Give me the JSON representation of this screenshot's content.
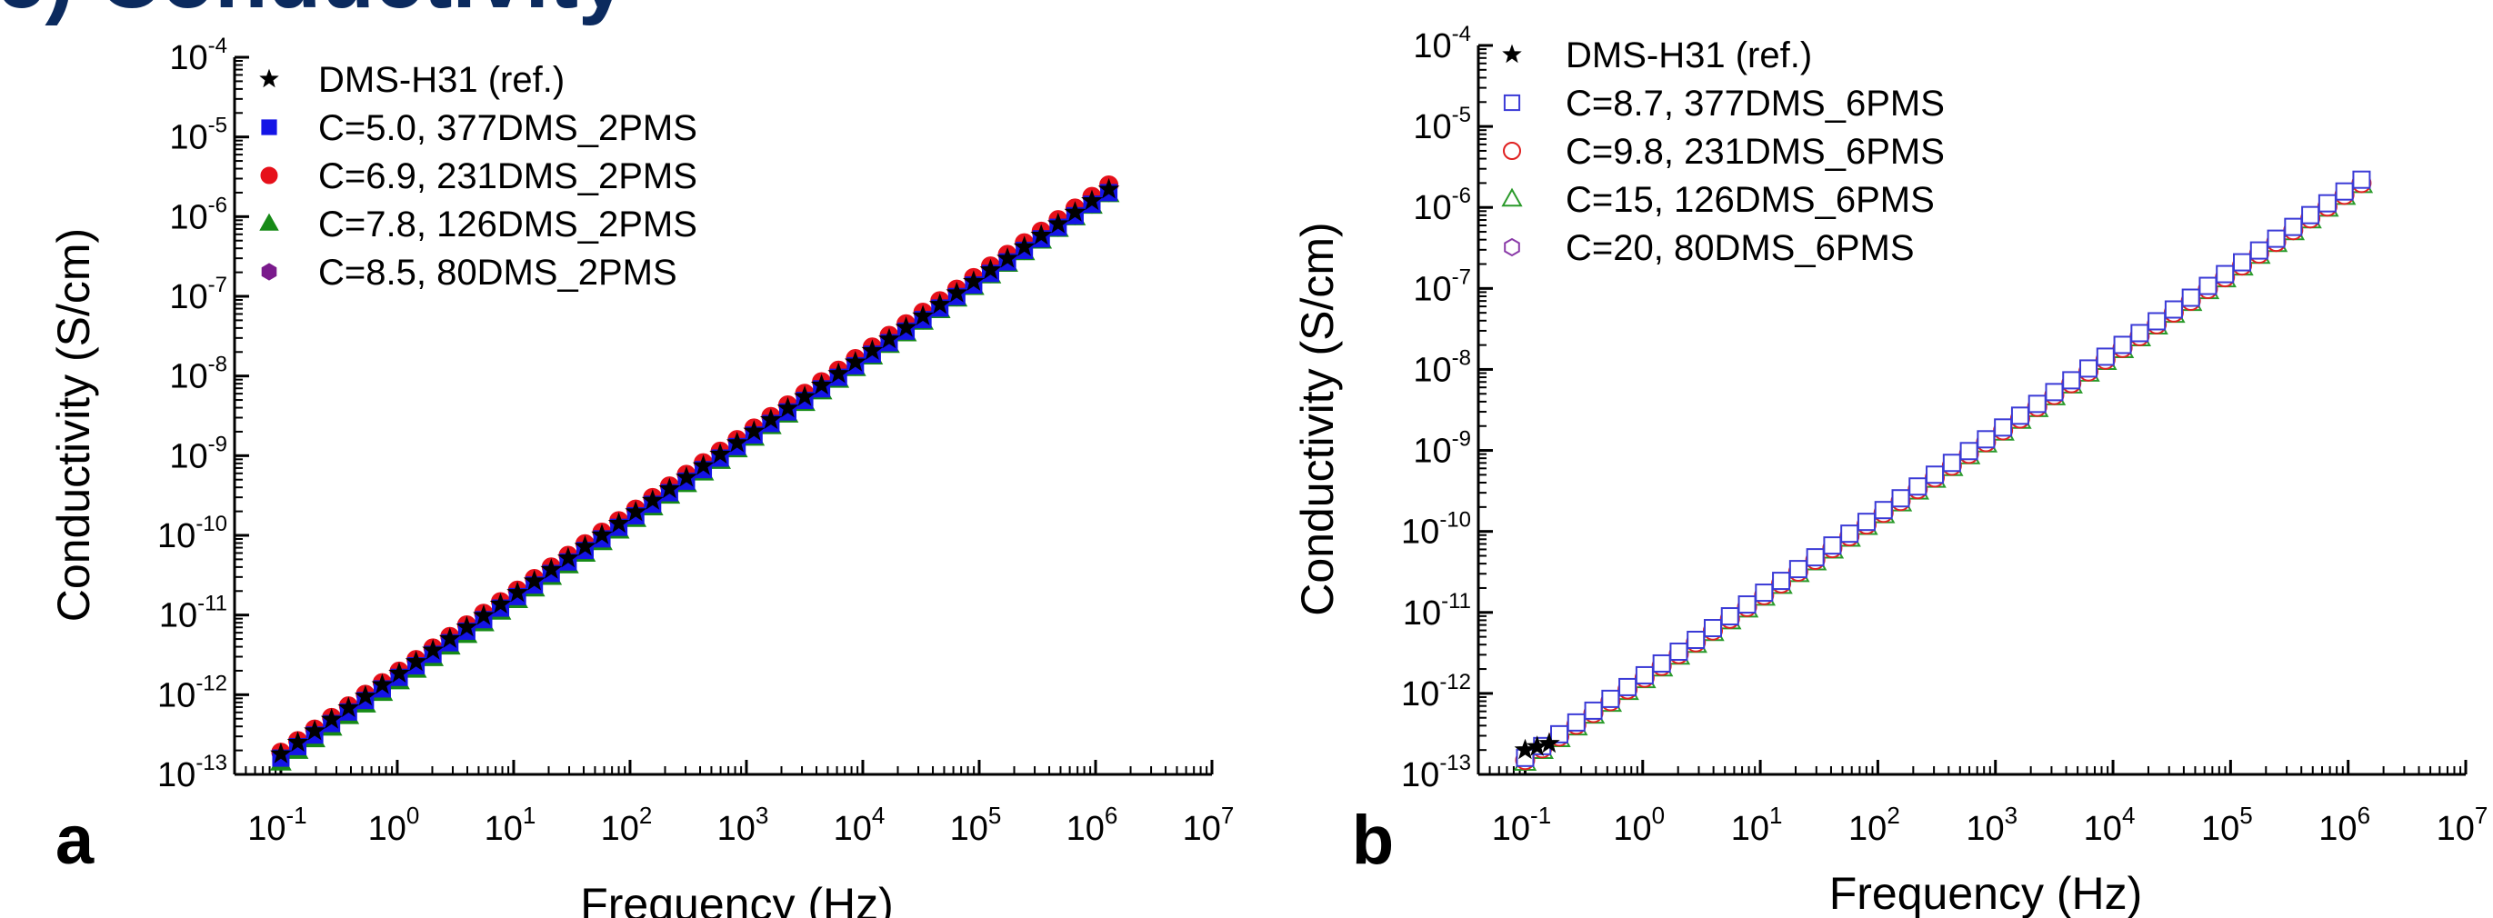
{
  "figure_title": "c) Conductivity",
  "chart_data": [
    {
      "type": "scatter",
      "panel": "a",
      "xlabel": "Frequency (Hz)",
      "ylabel": "Conductivity (S/cm)",
      "xscale": "log",
      "yscale": "log",
      "xlim": [
        0.04,
        10000000
      ],
      "ylim": [
        1e-13,
        0.0001
      ],
      "x_ticks": [
        {
          "base": "10",
          "exp": "-1"
        },
        {
          "base": "10",
          "exp": "0"
        },
        {
          "base": "10",
          "exp": "1"
        },
        {
          "base": "10",
          "exp": "2"
        },
        {
          "base": "10",
          "exp": "3"
        },
        {
          "base": "10",
          "exp": "4"
        },
        {
          "base": "10",
          "exp": "5"
        },
        {
          "base": "10",
          "exp": "6"
        },
        {
          "base": "10",
          "exp": "7"
        }
      ],
      "y_ticks": [
        {
          "base": "10",
          "exp": "-13"
        },
        {
          "base": "10",
          "exp": "-12"
        },
        {
          "base": "10",
          "exp": "-11"
        },
        {
          "base": "10",
          "exp": "-10"
        },
        {
          "base": "10",
          "exp": "-9"
        },
        {
          "base": "10",
          "exp": "-8"
        },
        {
          "base": "10",
          "exp": "-7"
        },
        {
          "base": "10",
          "exp": "-6"
        },
        {
          "base": "10",
          "exp": "-5"
        },
        {
          "base": "10",
          "exp": "-4"
        }
      ],
      "legend_position": "top-left",
      "grid": false,
      "series": [
        {
          "name": "DMS-H31 (ref.)",
          "marker": "star",
          "filled": true,
          "color": "#000000",
          "start": [
            0.1,
            1.8e-13
          ],
          "end": [
            1300000.0,
            2.2e-06
          ],
          "points": 50
        },
        {
          "name": "C=5.0, 377DMS_2PMS",
          "marker": "square",
          "filled": true,
          "color": "#1414e6",
          "start": [
            0.1,
            1.6e-13
          ],
          "end": [
            1300000.0,
            2e-06
          ],
          "points": 50
        },
        {
          "name": "C=6.9, 231DMS_2PMS",
          "marker": "circle",
          "filled": true,
          "color": "#e6101a",
          "start": [
            0.1,
            1.9e-13
          ],
          "end": [
            1300000.0,
            2.5e-06
          ],
          "points": 50
        },
        {
          "name": "C=7.8, 126DMS_2PMS",
          "marker": "triangle",
          "filled": true,
          "color": "#178a17",
          "start": [
            0.1,
            1.4e-13
          ],
          "end": [
            1300000.0,
            1.9e-06
          ],
          "points": 50
        },
        {
          "name": "C=8.5, 80DMS_2PMS",
          "marker": "hexagon",
          "filled": true,
          "color": "#7a1a8c",
          "start": [
            0.1,
            1.5e-13
          ],
          "end": [
            1300000.0,
            2e-06
          ],
          "points": 50
        }
      ]
    },
    {
      "type": "scatter",
      "panel": "b",
      "xlabel": "Frequency (Hz)",
      "ylabel": "Conductivity (S/cm)",
      "xscale": "log",
      "yscale": "log",
      "xlim": [
        0.04,
        10000000
      ],
      "ylim": [
        1e-13,
        0.0001
      ],
      "x_ticks": [
        {
          "base": "10",
          "exp": "-1"
        },
        {
          "base": "10",
          "exp": "0"
        },
        {
          "base": "10",
          "exp": "1"
        },
        {
          "base": "10",
          "exp": "2"
        },
        {
          "base": "10",
          "exp": "3"
        },
        {
          "base": "10",
          "exp": "4"
        },
        {
          "base": "10",
          "exp": "5"
        },
        {
          "base": "10",
          "exp": "6"
        },
        {
          "base": "10",
          "exp": "7"
        }
      ],
      "y_ticks": [
        {
          "base": "10",
          "exp": "-13"
        },
        {
          "base": "10",
          "exp": "-12"
        },
        {
          "base": "10",
          "exp": "-11"
        },
        {
          "base": "10",
          "exp": "-10"
        },
        {
          "base": "10",
          "exp": "-9"
        },
        {
          "base": "10",
          "exp": "-8"
        },
        {
          "base": "10",
          "exp": "-7"
        },
        {
          "base": "10",
          "exp": "-6"
        },
        {
          "base": "10",
          "exp": "-5"
        },
        {
          "base": "10",
          "exp": "-4"
        }
      ],
      "legend_position": "top-left",
      "grid": false,
      "series": [
        {
          "name": "DMS-H31 (ref.)",
          "marker": "star",
          "filled": true,
          "color": "#000000",
          "start": [
            0.1,
            2e-13
          ],
          "end": [
            0.16,
            2.4e-13
          ],
          "points": 3
        },
        {
          "name": "C=8.7, 377DMS_6PMS",
          "marker": "square",
          "filled": false,
          "color": "#3a3ad6",
          "start": [
            0.1,
            1.6e-13
          ],
          "end": [
            1300000.0,
            2.2e-06
          ],
          "points": 50
        },
        {
          "name": "C=9.8, 231DMS_6PMS",
          "marker": "circle",
          "filled": false,
          "color": "#e02020",
          "start": [
            0.1,
            1.5e-13
          ],
          "end": [
            1300000.0,
            2e-06
          ],
          "points": 50
        },
        {
          "name": "C=15, 126DMS_6PMS",
          "marker": "triangle",
          "filled": false,
          "color": "#2a9a2a",
          "start": [
            0.1,
            1.4e-13
          ],
          "end": [
            1300000.0,
            1.9e-06
          ],
          "points": 50
        },
        {
          "name": "C=20, 80DMS_6PMS",
          "marker": "hexagon",
          "filled": false,
          "color": "#8a3aa8",
          "start": [
            0.1,
            1.5e-13
          ],
          "end": [
            1300000.0,
            2e-06
          ],
          "points": 50
        }
      ]
    }
  ]
}
